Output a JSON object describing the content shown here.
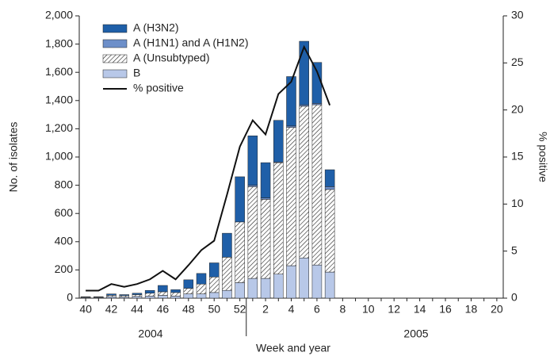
{
  "chart_data": {
    "type": "bar",
    "stacked": true,
    "x_label": "Week and year",
    "y_label": "No. of isolates",
    "y2_label": "% positive",
    "year_labels": [
      "2004",
      "2005"
    ],
    "categories": [
      "40",
      null,
      "42",
      null,
      "44",
      null,
      "46",
      null,
      "48",
      null,
      "50",
      null,
      "52",
      null,
      "2",
      null,
      "4",
      null,
      "6",
      null,
      "8",
      null,
      "10",
      null,
      "12",
      null,
      "14",
      null,
      "16",
      null,
      "18",
      null,
      "20"
    ],
    "series": [
      {
        "name": "A (H3N2)",
        "color": "#1f5fa8",
        "values": [
          2,
          2,
          10,
          7,
          10,
          20,
          45,
          20,
          60,
          75,
          100,
          170,
          320,
          350,
          250,
          295,
          350,
          450,
          290,
          120,
          null,
          null,
          null,
          null,
          null,
          null,
          null,
          null,
          null,
          null,
          null,
          null,
          null
        ]
      },
      {
        "name": "A (H1N1) and A (H1N2)",
        "color": "#6d8fc9",
        "values": [
          0,
          0,
          0,
          0,
          0,
          0,
          0,
          0,
          0,
          0,
          0,
          0,
          0,
          10,
          10,
          5,
          10,
          10,
          10,
          20,
          null,
          null,
          null,
          null,
          null,
          null,
          null,
          null,
          null,
          null,
          null,
          null,
          null
        ]
      },
      {
        "name": "A (Unsubtyped)",
        "color": "#ffffff",
        "hatch": true,
        "values": [
          3,
          3,
          10,
          10,
          13,
          20,
          25,
          25,
          40,
          70,
          110,
          235,
          430,
          650,
          560,
          790,
          980,
          1075,
          1135,
          585,
          null,
          null,
          null,
          null,
          null,
          null,
          null,
          null,
          null,
          null,
          null,
          null,
          null
        ]
      },
      {
        "name": "B",
        "color": "#b8c8e8",
        "values": [
          5,
          5,
          10,
          8,
          12,
          15,
          20,
          15,
          30,
          30,
          40,
          55,
          110,
          140,
          140,
          170,
          230,
          285,
          235,
          185,
          null,
          null,
          null,
          null,
          null,
          null,
          null,
          null,
          null,
          null,
          null,
          null,
          null
        ]
      },
      {
        "name": "% positive",
        "type": "line",
        "axis": "y2",
        "color": "#111111",
        "values": [
          0.8,
          0.8,
          1.5,
          1.2,
          1.5,
          2.0,
          2.9,
          2.0,
          3.5,
          5.1,
          6.1,
          11,
          16.1,
          18.9,
          17.4,
          21.7,
          23,
          26.7,
          24.1,
          20.5,
          null,
          null,
          null,
          null,
          null,
          null,
          null,
          null,
          null,
          null,
          null,
          null,
          null
        ]
      }
    ],
    "ylim": [
      0,
      2000
    ],
    "yticks": [
      0,
      200,
      400,
      600,
      800,
      {
        "value": 1000,
        "label": "1,000"
      },
      {
        "value": 1200,
        "label": "1,200"
      },
      {
        "value": 1400,
        "label": "1,400"
      },
      {
        "value": 1600,
        "label": "1,600"
      },
      {
        "value": 1800,
        "label": "1,800"
      },
      {
        "value": 2000,
        "label": "2,000"
      }
    ],
    "y2lim": [
      0,
      30
    ],
    "y2ticks": [
      0,
      5,
      10,
      15,
      20,
      25,
      30
    ],
    "grid": false
  }
}
